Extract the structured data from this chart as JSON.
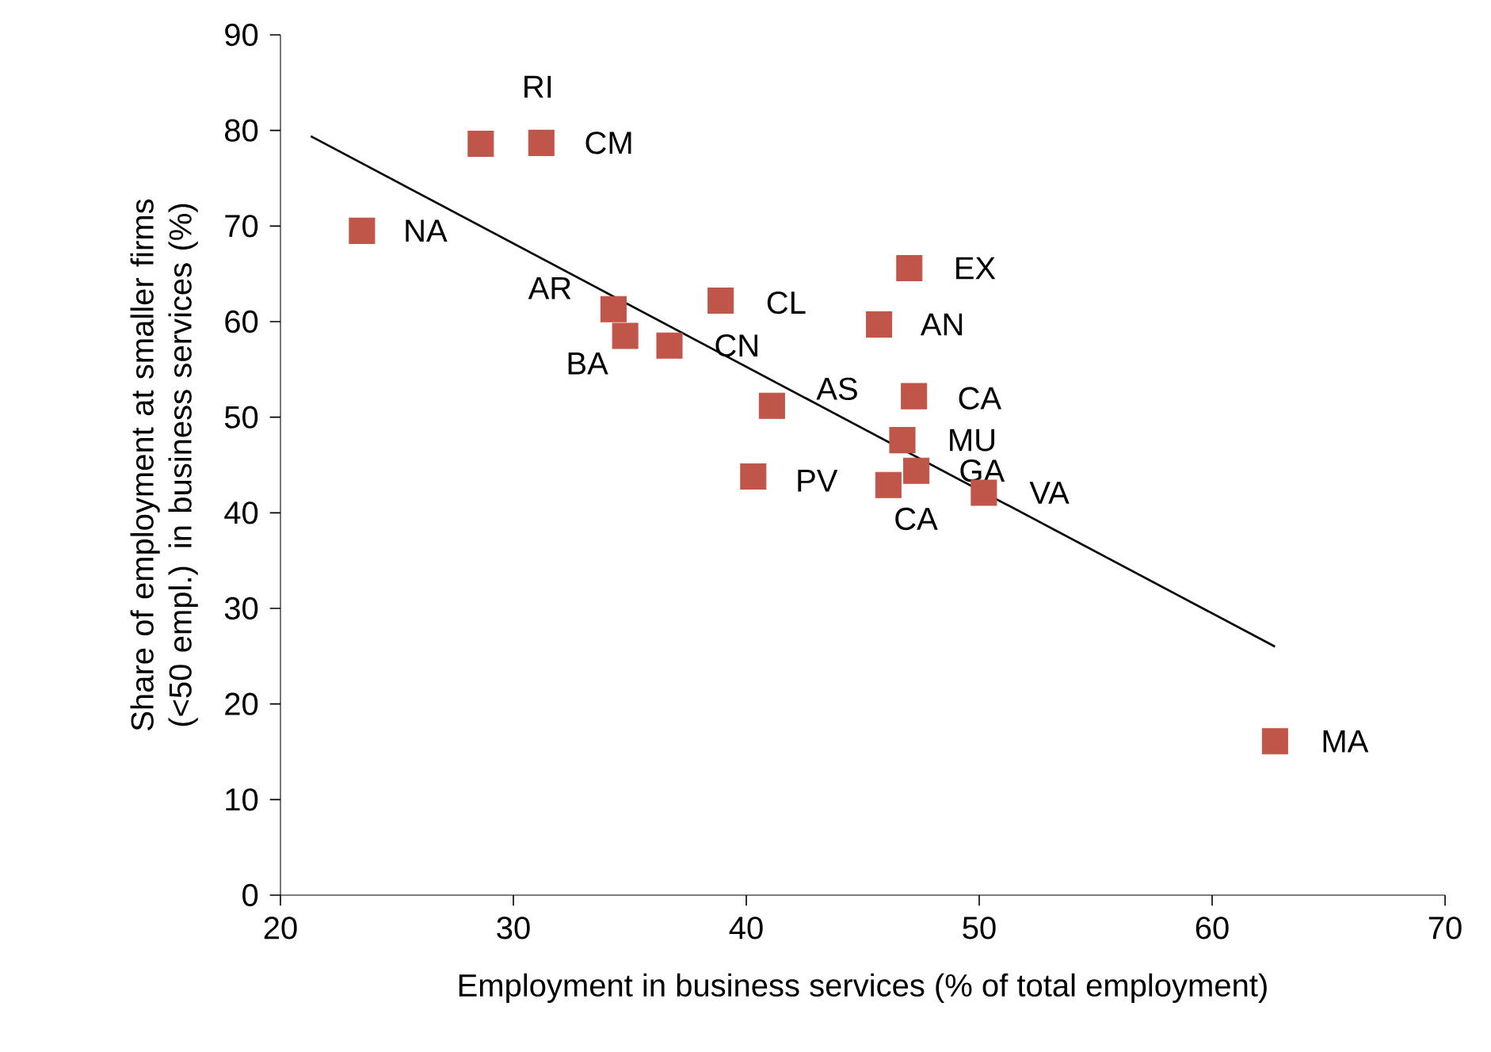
{
  "chart_data": {
    "type": "scatter",
    "xlabel": "Employment in business services (% of total employment)",
    "ylabel": "Share of employment at smaller firms  (<50 empl.) in business services (%)",
    "xlim": [
      20,
      70
    ],
    "xticks": [
      20,
      30,
      40,
      50,
      60,
      70
    ],
    "ylim": [
      0,
      90
    ],
    "yticks": [
      0,
      10,
      20,
      30,
      40,
      50,
      60,
      70,
      80,
      90
    ],
    "grid": false,
    "series": [
      {
        "color": "#c0564a",
        "marker": "square",
        "x": [
          23.5,
          28.6,
          31.2,
          34.3,
          34.8,
          36.7,
          38.9,
          41.1,
          40.3,
          45.7,
          47.0,
          47.2,
          46.7,
          47.3,
          46.1,
          50.2,
          62.7
        ],
        "values": [
          69.5,
          78.6,
          78.7,
          61.3,
          58.5,
          57.5,
          62.2,
          51.2,
          43.8,
          59.7,
          65.6,
          52.2,
          47.6,
          44.4,
          42.9,
          42.1,
          16.1
        ]
      },
      {
        "type": "line",
        "color": "#000000",
        "x": [
          21.3,
          62.7
        ],
        "values": [
          79.4,
          26.0
        ]
      }
    ],
    "annotations": [
      {
        "text": "RI",
        "x": 28.6,
        "y": 78.6
      },
      {
        "text": "CM",
        "x": 31.2,
        "y": 78.7
      },
      {
        "text": "NA",
        "x": 23.5,
        "y": 69.5
      },
      {
        "text": "AR",
        "x": 34.3,
        "y": 61.3
      },
      {
        "text": "BA",
        "x": 34.8,
        "y": 58.5
      },
      {
        "text": "CN",
        "x": 36.7,
        "y": 57.5
      },
      {
        "text": "CL",
        "x": 38.9,
        "y": 62.2
      },
      {
        "text": "AS",
        "x": 41.1,
        "y": 51.2
      },
      {
        "text": "PV",
        "x": 40.3,
        "y": 43.8
      },
      {
        "text": "AN",
        "x": 45.7,
        "y": 59.7
      },
      {
        "text": "EX",
        "x": 47.0,
        "y": 65.6
      },
      {
        "text": "CA",
        "x": 47.2,
        "y": 52.2
      },
      {
        "text": "MU",
        "x": 46.7,
        "y": 47.6
      },
      {
        "text": "GA",
        "x": 47.3,
        "y": 44.4
      },
      {
        "text": "CA",
        "x": 46.1,
        "y": 42.9
      },
      {
        "text": "VA",
        "x": 50.2,
        "y": 42.1
      },
      {
        "text": "MA",
        "x": 62.7,
        "y": 16.1
      }
    ]
  }
}
